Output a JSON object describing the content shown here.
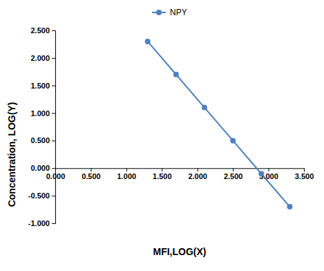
{
  "chart_data": {
    "type": "line",
    "x_label": "MFI,LOG(X)",
    "y_label": "Concentration,  LOG(Y)",
    "x": [
      1.3,
      1.7,
      2.1,
      2.5,
      2.9,
      3.3
    ],
    "series": [
      {
        "name": "NPY",
        "color": "#4f81bd",
        "marker": "circle",
        "line_style": "solid",
        "values": [
          2.3,
          1.7,
          1.1,
          0.5,
          -0.1,
          -0.7
        ]
      }
    ],
    "xlim": [
      0,
      3.5
    ],
    "xticks": [
      {
        "value": 0,
        "label": "0.000"
      },
      {
        "value": 0.5,
        "label": "0.500"
      },
      {
        "value": 1,
        "label": "1.000"
      },
      {
        "value": 1.5,
        "label": "1.500"
      },
      {
        "value": 2,
        "label": "2.000"
      },
      {
        "value": 2.5,
        "label": "2.500"
      },
      {
        "value": 3,
        "label": "3.000"
      },
      {
        "value": 3.5,
        "label": "3.500"
      }
    ],
    "ylim": [
      -1,
      2.5
    ],
    "yticks": [
      {
        "value": -1,
        "label": "-1.000"
      },
      {
        "value": -0.5,
        "label": "-0.500"
      },
      {
        "value": 0,
        "label": "0.000"
      },
      {
        "value": 0.5,
        "label": "0.500"
      },
      {
        "value": 1,
        "label": "1.000"
      },
      {
        "value": 1.5,
        "label": "1.500"
      },
      {
        "value": 2,
        "label": "2.000"
      },
      {
        "value": 2.5,
        "label": "2.500"
      }
    ],
    "grid": false,
    "legend": "top"
  }
}
